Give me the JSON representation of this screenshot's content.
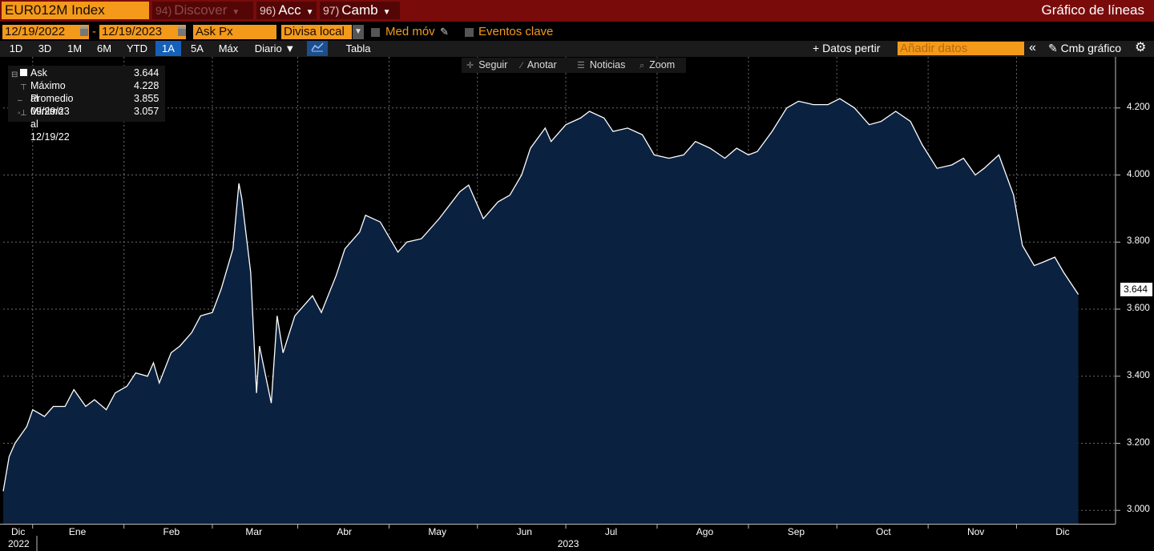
{
  "header": {
    "ticker": "EUR012M Index",
    "menus": [
      {
        "num": "94)",
        "label": "Discover"
      },
      {
        "num": "96)",
        "label": "Acc"
      },
      {
        "num": "97)",
        "label": "Camb"
      }
    ],
    "title": "Gráfico de líneas"
  },
  "controls": {
    "date_start": "12/19/2022",
    "date_sep": "-",
    "date_end": "12/19/2023",
    "field": "Ask Px",
    "currency": "Divisa local",
    "moving_avg_label": "Med móv",
    "key_events_label": "Eventos clave"
  },
  "toolbar": {
    "periods": [
      "1D",
      "3D",
      "1M",
      "6M",
      "YTD",
      "1A",
      "5A",
      "Máx"
    ],
    "selected_period": "1A",
    "frequency": "Diario",
    "table_label": "Tabla",
    "add_data_label": "Datos pertir",
    "add_data_placeholder": "Añadir datos",
    "collapse_symbol": "«",
    "change_chart_label": "Cmb gráfico",
    "settings_icon": "gear-icon"
  },
  "chart_tools": {
    "follow": "Seguir",
    "annotate": "Anotar",
    "news": "Noticias",
    "zoom": "Zoom"
  },
  "legend": {
    "series": {
      "label": "Ask",
      "value": "3.644"
    },
    "max": {
      "label": "Máximo al 09/29/23",
      "value": "4.228"
    },
    "avg": {
      "label": "Promedio",
      "value": "3.855"
    },
    "min": {
      "label": "Mínimo al 12/19/22",
      "value": "3.057"
    }
  },
  "colors": {
    "area_fill": "#0b2140",
    "line": "#ffffff",
    "accent_orange": "#f39a1b",
    "header_red": "#7a0b0b",
    "selected_blue": "#1560b8"
  },
  "chart_data": {
    "type": "area",
    "series": [
      {
        "name": "Ask",
        "points": [
          [
            "2022-12-19",
            3.057
          ],
          [
            "2022-12-21",
            3.16
          ],
          [
            "2022-12-23",
            3.2
          ],
          [
            "2022-12-27",
            3.25
          ],
          [
            "2022-12-29",
            3.3
          ],
          [
            "2023-01-02",
            3.28
          ],
          [
            "2023-01-05",
            3.31
          ],
          [
            "2023-01-09",
            3.31
          ],
          [
            "2023-01-12",
            3.36
          ],
          [
            "2023-01-16",
            3.31
          ],
          [
            "2023-01-19",
            3.33
          ],
          [
            "2023-01-23",
            3.3
          ],
          [
            "2023-01-26",
            3.35
          ],
          [
            "2023-01-30",
            3.37
          ],
          [
            "2023-02-02",
            3.41
          ],
          [
            "2023-02-06",
            3.4
          ],
          [
            "2023-02-08",
            3.44
          ],
          [
            "2023-02-10",
            3.38
          ],
          [
            "2023-02-14",
            3.47
          ],
          [
            "2023-02-17",
            3.49
          ],
          [
            "2023-02-21",
            3.53
          ],
          [
            "2023-02-24",
            3.58
          ],
          [
            "2023-02-28",
            3.59
          ],
          [
            "2023-03-03",
            3.66
          ],
          [
            "2023-03-07",
            3.78
          ],
          [
            "2023-03-09",
            3.975
          ],
          [
            "2023-03-10",
            3.93
          ],
          [
            "2023-03-13",
            3.71
          ],
          [
            "2023-03-15",
            3.35
          ],
          [
            "2023-03-16",
            3.49
          ],
          [
            "2023-03-20",
            3.32
          ],
          [
            "2023-03-22",
            3.58
          ],
          [
            "2023-03-24",
            3.47
          ],
          [
            "2023-03-28",
            3.58
          ],
          [
            "2023-04-03",
            3.64
          ],
          [
            "2023-04-06",
            3.59
          ],
          [
            "2023-04-11",
            3.7
          ],
          [
            "2023-04-14",
            3.78
          ],
          [
            "2023-04-19",
            3.83
          ],
          [
            "2023-04-21",
            3.88
          ],
          [
            "2023-04-26",
            3.86
          ],
          [
            "2023-05-02",
            3.77
          ],
          [
            "2023-05-05",
            3.8
          ],
          [
            "2023-05-10",
            3.81
          ],
          [
            "2023-05-16",
            3.87
          ],
          [
            "2023-05-23",
            3.95
          ],
          [
            "2023-05-26",
            3.97
          ],
          [
            "2023-05-31",
            3.87
          ],
          [
            "2023-06-05",
            3.92
          ],
          [
            "2023-06-09",
            3.94
          ],
          [
            "2023-06-13",
            4.0
          ],
          [
            "2023-06-16",
            4.08
          ],
          [
            "2023-06-21",
            4.14
          ],
          [
            "2023-06-23",
            4.1
          ],
          [
            "2023-06-28",
            4.15
          ],
          [
            "2023-07-03",
            4.17
          ],
          [
            "2023-07-06",
            4.19
          ],
          [
            "2023-07-11",
            4.17
          ],
          [
            "2023-07-14",
            4.13
          ],
          [
            "2023-07-19",
            4.14
          ],
          [
            "2023-07-24",
            4.12
          ],
          [
            "2023-07-28",
            4.06
          ],
          [
            "2023-08-02",
            4.05
          ],
          [
            "2023-08-07",
            4.06
          ],
          [
            "2023-08-11",
            4.1
          ],
          [
            "2023-08-16",
            4.08
          ],
          [
            "2023-08-21",
            4.05
          ],
          [
            "2023-08-25",
            4.08
          ],
          [
            "2023-08-29",
            4.06
          ],
          [
            "2023-09-01",
            4.07
          ],
          [
            "2023-09-06",
            4.13
          ],
          [
            "2023-09-11",
            4.2
          ],
          [
            "2023-09-15",
            4.22
          ],
          [
            "2023-09-20",
            4.21
          ],
          [
            "2023-09-25",
            4.21
          ],
          [
            "2023-09-29",
            4.228
          ],
          [
            "2023-10-04",
            4.2
          ],
          [
            "2023-10-09",
            4.15
          ],
          [
            "2023-10-13",
            4.16
          ],
          [
            "2023-10-18",
            4.19
          ],
          [
            "2023-10-23",
            4.16
          ],
          [
            "2023-10-27",
            4.09
          ],
          [
            "2023-11-01",
            4.02
          ],
          [
            "2023-11-06",
            4.03
          ],
          [
            "2023-11-10",
            4.05
          ],
          [
            "2023-11-14",
            4.0
          ],
          [
            "2023-11-17",
            4.02
          ],
          [
            "2023-11-22",
            4.06
          ],
          [
            "2023-11-27",
            3.94
          ],
          [
            "2023-11-30",
            3.79
          ],
          [
            "2023-12-04",
            3.73
          ],
          [
            "2023-12-07",
            3.74
          ],
          [
            "2023-12-11",
            3.755
          ],
          [
            "2023-12-14",
            3.71
          ],
          [
            "2023-12-19",
            3.644
          ]
        ]
      }
    ],
    "last_value": "3.644",
    "y_ticks": [
      "3.000",
      "3.200",
      "3.400",
      "3.600",
      "3.800",
      "4.000",
      "4.200"
    ],
    "ylim": [
      2.96,
      4.35
    ],
    "x_months": [
      {
        "label": "Dic",
        "date": "2022-12-19"
      },
      {
        "label": "Ene",
        "date": "2023-01-13"
      },
      {
        "label": "Feb",
        "date": "2023-02-14"
      },
      {
        "label": "Mar",
        "date": "2023-03-14"
      },
      {
        "label": "Abr",
        "date": "2023-04-14"
      },
      {
        "label": "May",
        "date": "2023-05-15"
      },
      {
        "label": "Jun",
        "date": "2023-06-14"
      },
      {
        "label": "Jul",
        "date": "2023-07-14"
      },
      {
        "label": "Ago",
        "date": "2023-08-14"
      },
      {
        "label": "Sep",
        "date": "2023-09-14"
      },
      {
        "label": "Oct",
        "date": "2023-10-14"
      },
      {
        "label": "Nov",
        "date": "2023-11-14"
      },
      {
        "label": "Dic",
        "date": "2023-12-14"
      }
    ],
    "x_grid": [
      "2022-12-29",
      "2023-01-29",
      "2023-02-28",
      "2023-03-29",
      "2023-04-29",
      "2023-05-29",
      "2023-06-28",
      "2023-07-29",
      "2023-08-29",
      "2023-09-28",
      "2023-10-29",
      "2023-11-28"
    ],
    "xlim": [
      "2022-12-19",
      "2023-12-24"
    ],
    "year_labels": [
      {
        "label": "2022",
        "date": "2022-12-19"
      },
      {
        "label": "2023",
        "date": "2023-06-29"
      }
    ],
    "grid": true
  }
}
